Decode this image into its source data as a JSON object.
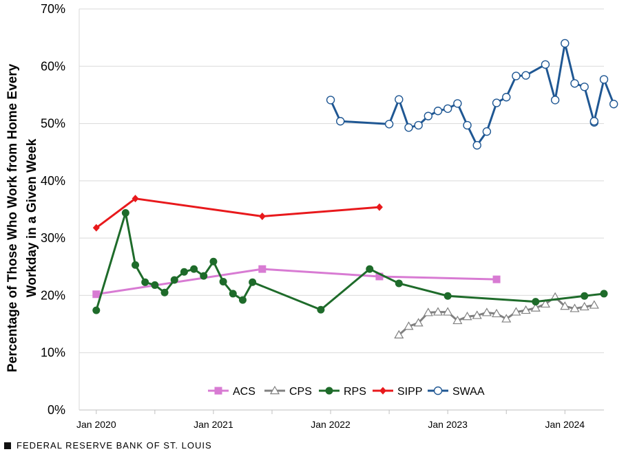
{
  "source_label": "FEDERAL RESERVE BANK OF ST. LOUIS",
  "chart_data": {
    "type": "line",
    "ylabel_lines": [
      "Percentage of Those Who Work from Home  Every",
      "Workday in a Given Week"
    ],
    "ylim": [
      0,
      70
    ],
    "y_ticks": [
      0,
      10,
      20,
      30,
      40,
      50,
      60,
      70
    ],
    "y_tick_labels": [
      "0%",
      "10%",
      "20%",
      "30%",
      "40%",
      "50%",
      "60%",
      "70%"
    ],
    "x_ticks": [
      "2020-01",
      "2021-01",
      "2022-01",
      "2023-01",
      "2024-01"
    ],
    "x_tick_labels": [
      "Jan 2020",
      "Jan 2021",
      "Jan 2022",
      "Jan 2023",
      "Jan 2024"
    ],
    "xlim": [
      "2019-12",
      "2024-05"
    ],
    "grid": "horizontal",
    "legend_position": "bottom",
    "series": [
      {
        "name": "ACS",
        "color": "#d87bd3",
        "marker": "square",
        "points": [
          [
            "2020-01",
            20.2
          ],
          [
            "2021-06",
            24.6
          ],
          [
            "2022-06",
            23.3
          ],
          [
            "2023-06",
            22.8
          ]
        ]
      },
      {
        "name": "CPS",
        "color": "#808080",
        "marker": "triangle",
        "points": [
          [
            "2022-08",
            13.1
          ],
          [
            "2022-09",
            14.6
          ],
          [
            "2022-10",
            15.2
          ],
          [
            "2022-11",
            17.0
          ],
          [
            "2022-12",
            17.1
          ],
          [
            "2023-01",
            17.1
          ],
          [
            "2023-02",
            15.6
          ],
          [
            "2023-03",
            16.3
          ],
          [
            "2023-04",
            16.5
          ],
          [
            "2023-05",
            17.0
          ],
          [
            "2023-06",
            16.8
          ],
          [
            "2023-07",
            15.9
          ],
          [
            "2023-08",
            17.1
          ],
          [
            "2023-09",
            17.4
          ],
          [
            "2023-10",
            17.8
          ],
          [
            "2023-11",
            18.5
          ],
          [
            "2023-12",
            19.7
          ],
          [
            "2024-01",
            18.1
          ],
          [
            "2024-02",
            17.7
          ],
          [
            "2024-03",
            18.0
          ],
          [
            "2024-04",
            18.3
          ]
        ]
      },
      {
        "name": "RPS",
        "color": "#1e6b2a",
        "marker": "circle",
        "points": [
          [
            "2020-01",
            17.4
          ],
          [
            "2020-04",
            34.4
          ],
          [
            "2020-05",
            25.3
          ],
          [
            "2020-06",
            22.3
          ],
          [
            "2020-07",
            21.8
          ],
          [
            "2020-08",
            20.5
          ],
          [
            "2020-09",
            22.7
          ],
          [
            "2020-10",
            24.1
          ],
          [
            "2020-11",
            24.6
          ],
          [
            "2020-12",
            23.4
          ],
          [
            "2021-01",
            25.9
          ],
          [
            "2021-02",
            22.4
          ],
          [
            "2021-03",
            20.3
          ],
          [
            "2021-04",
            19.2
          ],
          [
            "2021-05",
            22.3
          ],
          [
            "2021-12",
            17.5
          ],
          [
            "2022-05",
            24.6
          ],
          [
            "2022-08",
            22.1
          ],
          [
            "2023-01",
            19.9
          ],
          [
            "2023-10",
            18.9
          ],
          [
            "2024-03",
            19.9
          ],
          [
            "2024-05",
            20.3
          ]
        ]
      },
      {
        "name": "SIPP",
        "color": "#e8191c",
        "marker": "diamond",
        "points": [
          [
            "2020-01",
            31.8
          ],
          [
            "2020-05",
            36.9
          ],
          [
            "2021-06",
            33.8
          ],
          [
            "2022-06",
            35.4
          ]
        ]
      },
      {
        "name": "SWAA",
        "color": "#1f5793",
        "marker": "open-circle",
        "points": [
          [
            "2022-01",
            54.1
          ],
          [
            "2022-02",
            50.4
          ],
          [
            "2022-07",
            49.9
          ],
          [
            "2022-08",
            54.2
          ],
          [
            "2022-09",
            49.3
          ],
          [
            "2022-10",
            49.7
          ],
          [
            "2022-11",
            51.3
          ],
          [
            "2022-12",
            52.2
          ],
          [
            "2023-01",
            52.6
          ],
          [
            "2023-02",
            53.5
          ],
          [
            "2023-03",
            49.7
          ],
          [
            "2023-04",
            46.2
          ],
          [
            "2023-05",
            48.6
          ],
          [
            "2023-06",
            53.6
          ],
          [
            "2023-07",
            54.6
          ],
          [
            "2023-08",
            58.3
          ],
          [
            "2023-09",
            58.4
          ],
          [
            "2023-11",
            60.3
          ],
          [
            "2023-12",
            54.1
          ],
          [
            "2024-01",
            64.0
          ],
          [
            "2024-02",
            57.0
          ],
          [
            "2024-03",
            56.4
          ],
          [
            "2024-04",
            50.2
          ],
          [
            "2024-04",
            50.4
          ],
          [
            "2024-05",
            57.7
          ],
          [
            "2024-06",
            53.4
          ]
        ]
      }
    ]
  }
}
